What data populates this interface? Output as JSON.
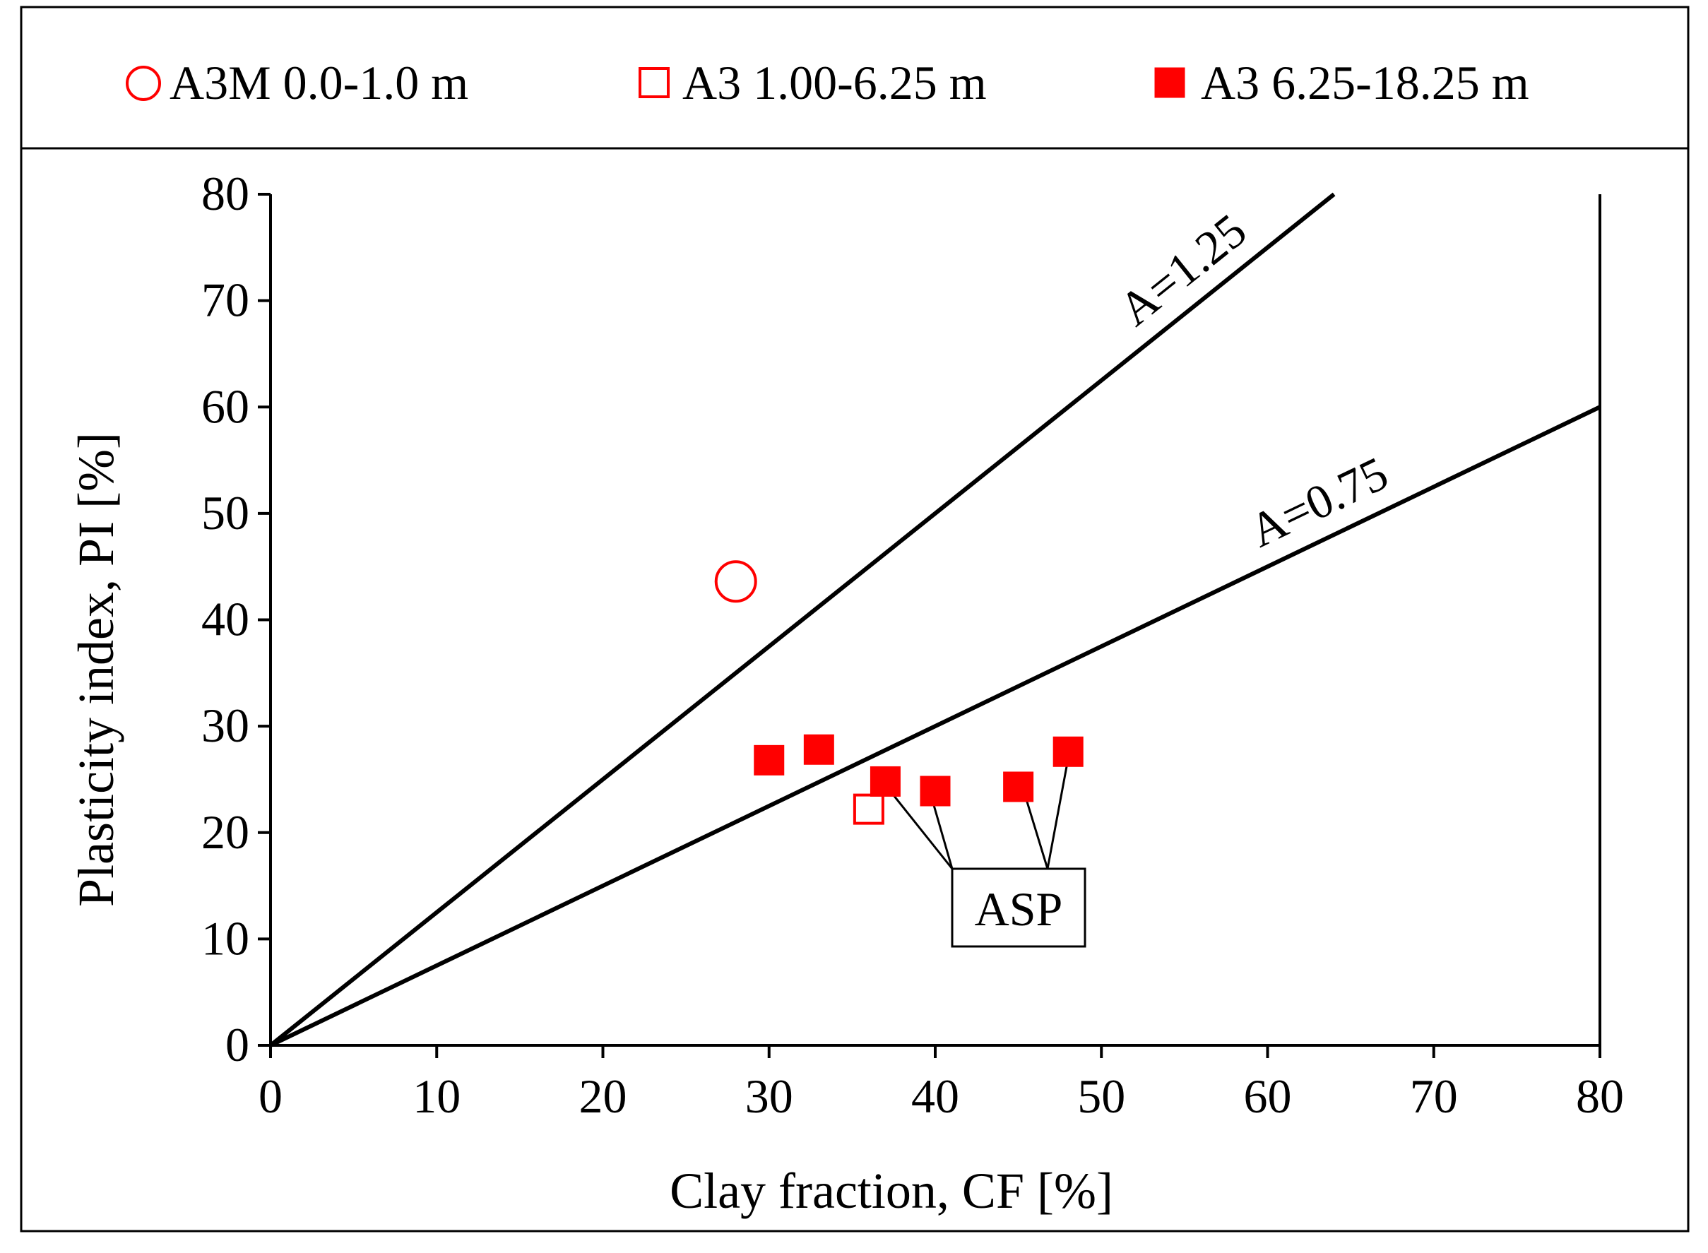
{
  "chart_data": {
    "type": "scatter",
    "title": "",
    "xlabel": "Clay fraction, CF [%]",
    "ylabel": "Plasticity index, PI [%]",
    "xlim": [
      0,
      80
    ],
    "ylim": [
      0,
      80
    ],
    "xticks": [
      "0",
      "10",
      "20",
      "30",
      "40",
      "50",
      "60",
      "70",
      "80"
    ],
    "yticks": [
      "0",
      "10",
      "20",
      "30",
      "40",
      "50",
      "60",
      "70",
      "80"
    ],
    "grid": false,
    "legend_position": "top",
    "series": [
      {
        "name": "A3M 0.0-1.0 m",
        "marker": "circle-open",
        "color": "#ff0000",
        "points": [
          {
            "x": 28,
            "y": 43.6
          }
        ]
      },
      {
        "name": "A3 1.00-6.25 m",
        "marker": "square-open",
        "color": "#ff0000",
        "points": [
          {
            "x": 36,
            "y": 22.2
          }
        ]
      },
      {
        "name": "A3 6.25-18.25 m",
        "marker": "square-filled",
        "color": "#ff0000",
        "points": [
          {
            "x": 30,
            "y": 26.8
          },
          {
            "x": 33,
            "y": 27.8
          },
          {
            "x": 37,
            "y": 24.8
          },
          {
            "x": 40,
            "y": 23.9
          },
          {
            "x": 45,
            "y": 24.3
          },
          {
            "x": 48,
            "y": 27.6
          }
        ]
      }
    ],
    "reference_lines": [
      {
        "label": "A=1.25",
        "slope": 1.25
      },
      {
        "label": "A=0.75",
        "slope": 0.75
      }
    ],
    "annotation": {
      "text": "ASP",
      "points": [
        {
          "x": 37,
          "y": 24.8
        },
        {
          "x": 40,
          "y": 23.9
        },
        {
          "x": 45,
          "y": 24.3
        },
        {
          "x": 48,
          "y": 27.6
        }
      ]
    }
  }
}
